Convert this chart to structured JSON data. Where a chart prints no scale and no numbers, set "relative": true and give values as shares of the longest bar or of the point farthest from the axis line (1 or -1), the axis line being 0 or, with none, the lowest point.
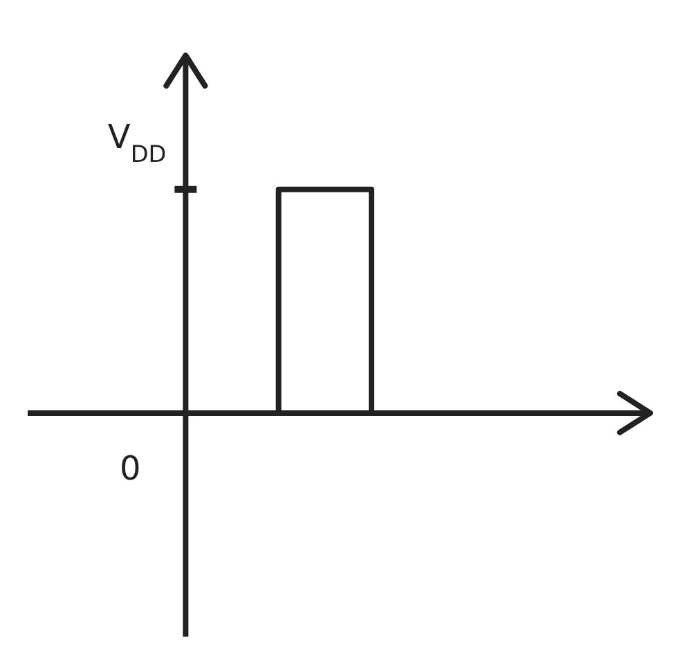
{
  "chart_data": {
    "type": "step",
    "relative": true,
    "categories": [
      null,
      null,
      null
    ],
    "values": [
      0,
      1,
      0
    ],
    "color": "#222222",
    "annotations": [
      "V$_{DD}$",
      "0"
    ]
  }
}
